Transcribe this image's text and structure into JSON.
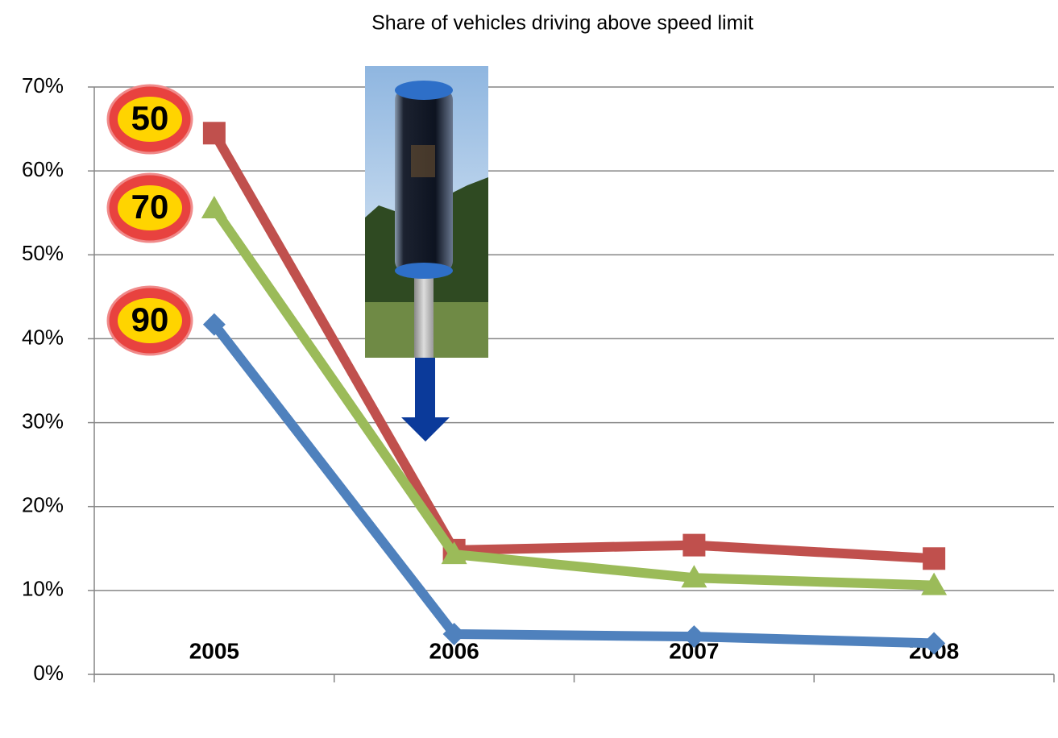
{
  "chart_data": {
    "type": "line",
    "title": "Share of vehicles driving above speed limit",
    "categories": [
      "2005",
      "2006",
      "2007",
      "2008"
    ],
    "series": [
      {
        "name": "50",
        "color": "#c0504d",
        "marker": "square",
        "values": [
          64.5,
          14.8,
          15.4,
          13.8
        ]
      },
      {
        "name": "70",
        "color": "#9bbb59",
        "marker": "triangle",
        "values": [
          55.5,
          14.3,
          11.5,
          10.6
        ]
      },
      {
        "name": "90",
        "color": "#4f81bd",
        "marker": "diamond",
        "values": [
          41.7,
          4.8,
          4.5,
          3.7
        ]
      }
    ],
    "ylim": [
      0,
      70
    ],
    "yticks": [
      {
        "value": 0,
        "label": "0%"
      },
      {
        "value": 10,
        "label": "10%"
      },
      {
        "value": 20,
        "label": "20%"
      },
      {
        "value": 30,
        "label": "30%"
      },
      {
        "value": 40,
        "label": "40%"
      },
      {
        "value": 50,
        "label": "50%"
      },
      {
        "value": 60,
        "label": "60%"
      },
      {
        "value": 70,
        "label": "70%"
      }
    ],
    "grid": true
  }
}
